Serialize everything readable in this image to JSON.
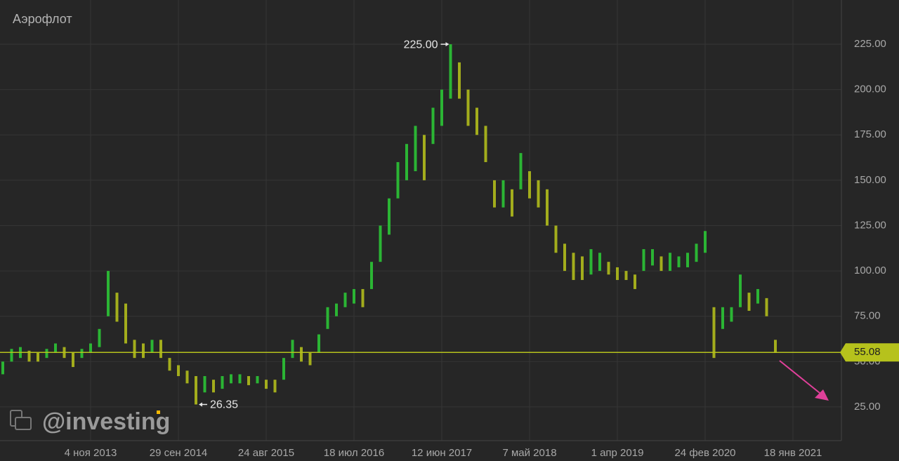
{
  "chart_data": {
    "type": "range-bar",
    "title": "Аэрофлот",
    "watermark": "@investing",
    "up_color": "#2bb534",
    "down_color": "#a3ad1c",
    "last_price": 55.08,
    "last_price_color": "#b6c21c",
    "categories": [
      null,
      null,
      null,
      null,
      null,
      null,
      null,
      null,
      null,
      null,
      "4 ноя 2013",
      null,
      null,
      null,
      null,
      null,
      null,
      null,
      null,
      null,
      "29 сен 2014",
      null,
      null,
      null,
      null,
      null,
      null,
      null,
      null,
      null,
      "24 авг 2015",
      null,
      null,
      null,
      null,
      null,
      null,
      null,
      null,
      null,
      "18 июл 2016",
      null,
      null,
      null,
      null,
      null,
      null,
      null,
      null,
      null,
      "12 июн 2017",
      null,
      null,
      null,
      null,
      null,
      null,
      null,
      null,
      null,
      "7 май 2018",
      null,
      null,
      null,
      null,
      null,
      null,
      null,
      null,
      null,
      "1 апр 2019",
      null,
      null,
      null,
      null,
      null,
      null,
      null,
      null,
      null,
      "24 фев 2020",
      null,
      null,
      null,
      null,
      null,
      null,
      null,
      null,
      null,
      "18 янв 2021"
    ],
    "series": [
      {
        "name": "high",
        "values": [
          50,
          57,
          58,
          56,
          55,
          57,
          60,
          58,
          55,
          57,
          60,
          68,
          100,
          88,
          82,
          62,
          60,
          62,
          62,
          52,
          48,
          45,
          42,
          42,
          40,
          42,
          43,
          43,
          42,
          42,
          40,
          40,
          52,
          62,
          58,
          55,
          65,
          80,
          82,
          88,
          90,
          90,
          105,
          125,
          140,
          160,
          170,
          180,
          175,
          190,
          200,
          225,
          215,
          200,
          190,
          180,
          150,
          150,
          145,
          165,
          155,
          150,
          145,
          125,
          115,
          110,
          108,
          112,
          110,
          105,
          102,
          100,
          98,
          112,
          112,
          108,
          110,
          108,
          110,
          115,
          122,
          80,
          80,
          80,
          98,
          88,
          90,
          85,
          62,
          null,
          null
        ]
      },
      {
        "name": "low",
        "values": [
          43,
          50,
          52,
          50,
          50,
          52,
          55,
          52,
          47,
          52,
          55,
          58,
          75,
          72,
          60,
          52,
          52,
          55,
          52,
          45,
          42,
          38,
          26.35,
          33,
          33,
          35,
          38,
          38,
          37,
          38,
          35,
          33,
          40,
          52,
          50,
          48,
          55,
          68,
          75,
          80,
          82,
          80,
          90,
          105,
          120,
          140,
          150,
          155,
          150,
          170,
          180,
          195,
          195,
          180,
          175,
          160,
          135,
          135,
          130,
          145,
          140,
          135,
          125,
          110,
          100,
          95,
          95,
          98,
          100,
          98,
          95,
          95,
          90,
          100,
          103,
          100,
          100,
          102,
          102,
          105,
          110,
          52,
          68,
          72,
          80,
          78,
          82,
          75,
          55,
          null,
          null
        ]
      }
    ],
    "annotations": [
      {
        "index": 51,
        "value": 225,
        "label": "225.00"
      },
      {
        "index": 22,
        "value": 26.35,
        "label": 26.35
      }
    ],
    "ylim": [
      6.4,
      249.4
    ],
    "yticks": [
      {
        "value": 25,
        "label": "25.00"
      },
      {
        "value": 50,
        "label": "50.00"
      },
      {
        "value": 75,
        "label": "75.00"
      },
      {
        "value": 100,
        "label": "100.00"
      },
      {
        "value": 125,
        "label": "125.00"
      },
      {
        "value": 150,
        "label": "150.00"
      },
      {
        "value": 175,
        "label": "175.00"
      },
      {
        "value": 200,
        "label": "200.00"
      },
      {
        "value": 225,
        "label": "225.00"
      }
    ],
    "grid": true
  }
}
